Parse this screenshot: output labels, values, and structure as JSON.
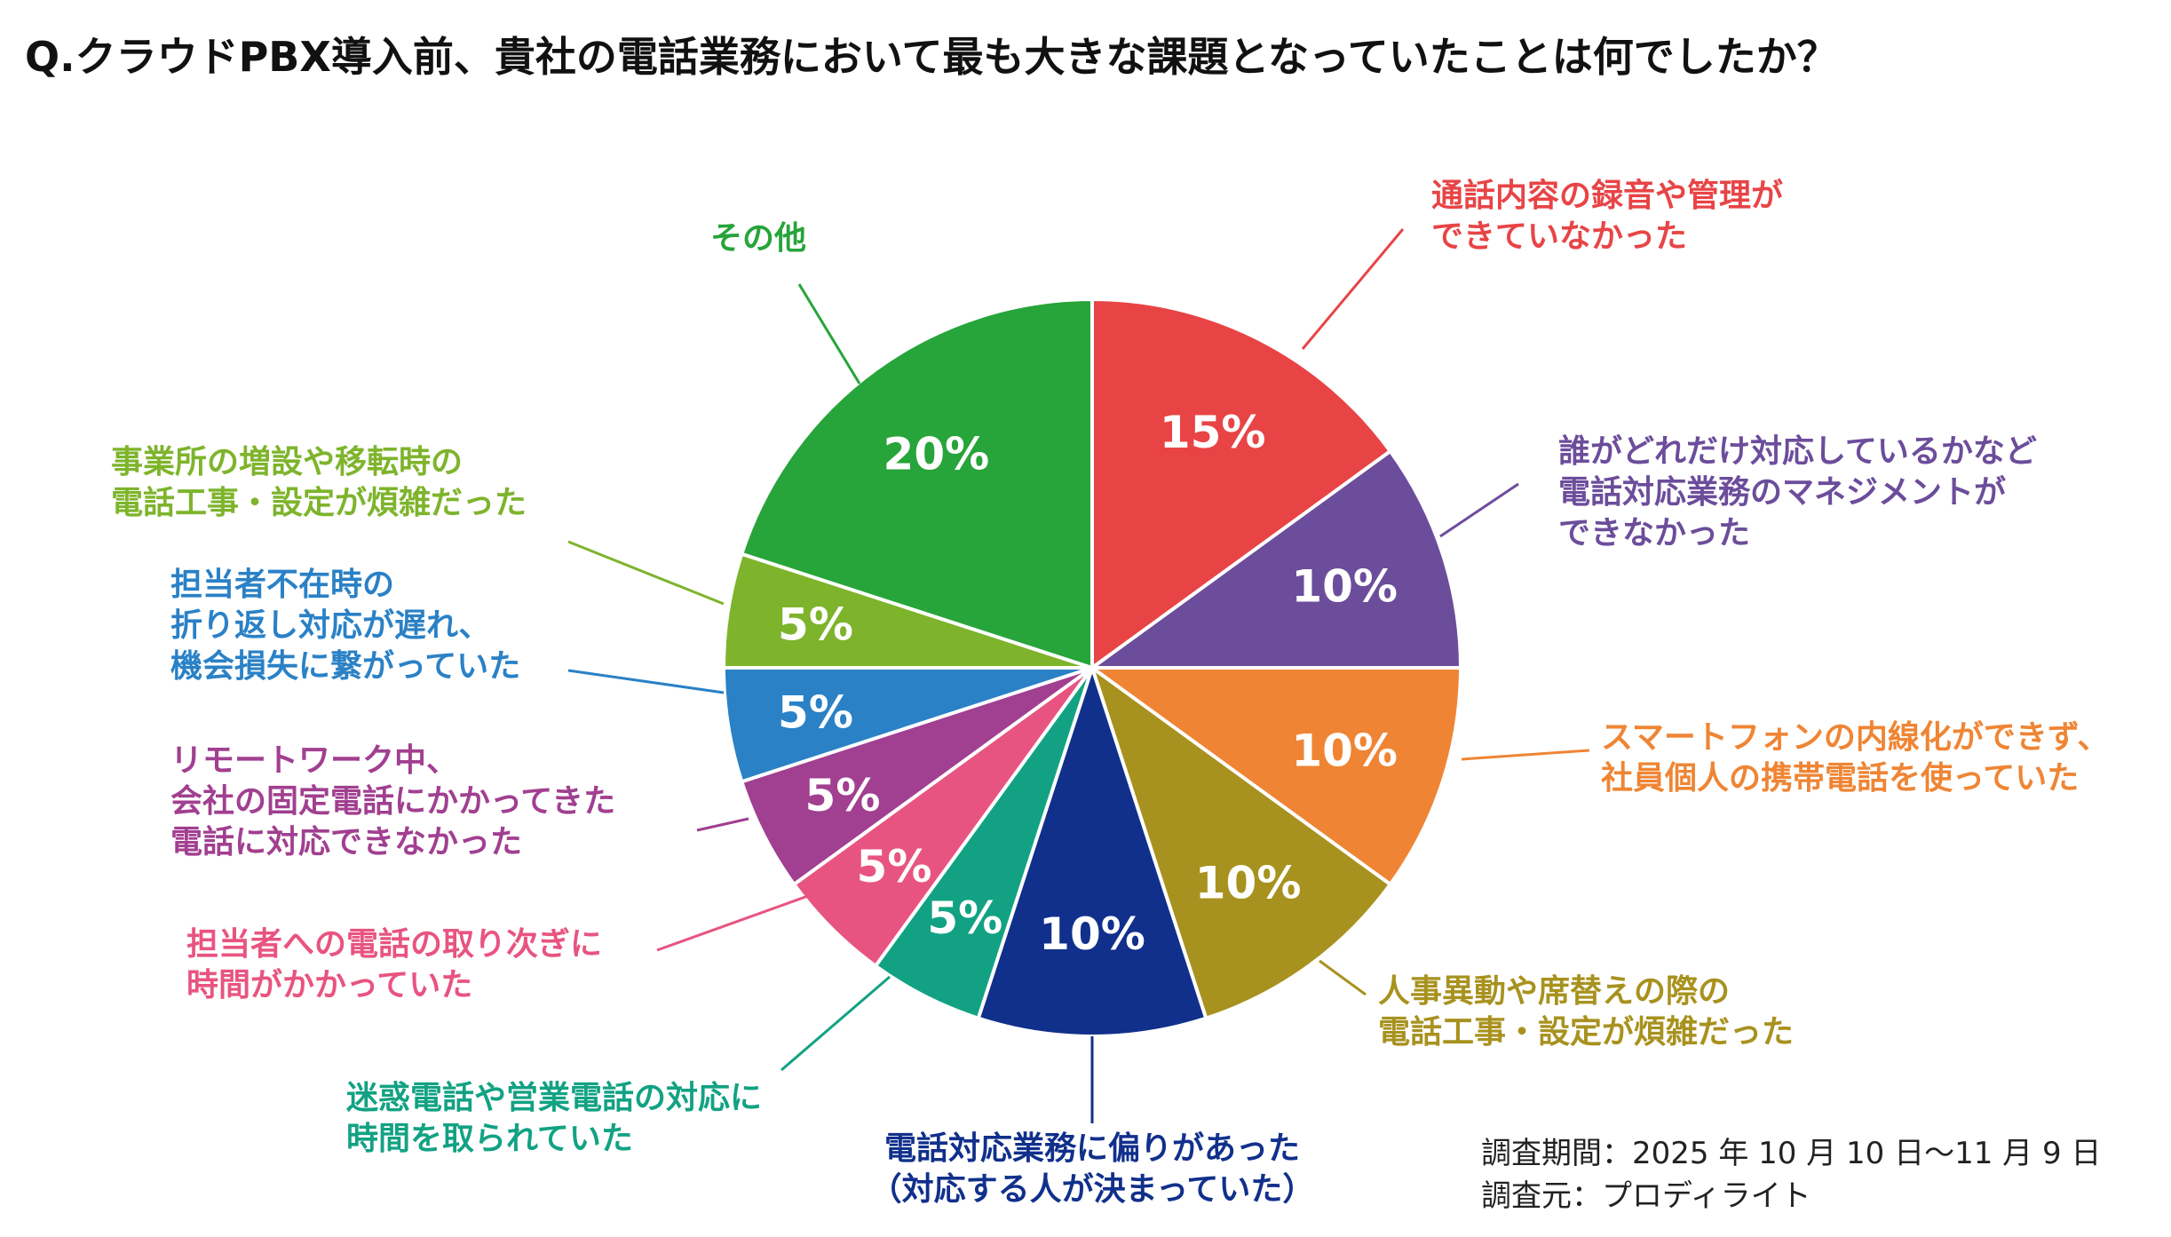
{
  "chart_data": {
    "type": "pie",
    "title": "Q.クラウドPBX導入前、貴社の電話業務において最も大きな課題となっていたことは何でしたか？",
    "unit": "%",
    "slices": [
      {
        "label_lines": [
          "通話内容の録音や管理が",
          "できていなかった"
        ],
        "value": 15,
        "display": "15%",
        "color": "#e84446"
      },
      {
        "label_lines": [
          "誰がどれだけ対応しているかなど",
          "電話対応業務のマネジメントが",
          "できなかった"
        ],
        "value": 10,
        "display": "10%",
        "color": "#6c4d9b"
      },
      {
        "label_lines": [
          "スマートフォンの内線化ができず、",
          "社員個人の携帯電話を使っていた"
        ],
        "value": 10,
        "display": "10%",
        "color": "#ef8534"
      },
      {
        "label_lines": [
          "人事異動や席替えの際の",
          "電話工事・設定が煩雑だった"
        ],
        "value": 10,
        "display": "10%",
        "color": "#a8921f"
      },
      {
        "label_lines": [
          "電話対応業務に偏りがあった",
          "（対応する人が決まっていた）"
        ],
        "value": 10,
        "display": "10%",
        "color": "#11308c"
      },
      {
        "label_lines": [
          "迷惑電話や営業電話の対応に",
          "時間を取られていた"
        ],
        "value": 5,
        "display": "5%",
        "color": "#12a283"
      },
      {
        "label_lines": [
          "担当者への電話の取り次ぎに",
          "時間がかかっていた"
        ],
        "value": 5,
        "display": "5%",
        "color": "#e85481"
      },
      {
        "label_lines": [
          "リモートワーク中、",
          "会社の固定電話にかかってきた",
          "電話に対応できなかった"
        ],
        "value": 5,
        "display": "5%",
        "color": "#a13f90"
      },
      {
        "label_lines": [
          "担当者不在時の",
          "折り返し対応が遅れ、",
          "機会損失に繋がっていた"
        ],
        "value": 5,
        "display": "5%",
        "color": "#2a81c6"
      },
      {
        "label_lines": [
          "事業所の増設や移転時の",
          "電話工事・設定が煩雑だった"
        ],
        "value": 5,
        "display": "5%",
        "color": "#7eb42c"
      },
      {
        "label_lines": [
          "その他"
        ],
        "value": 20,
        "display": "20%",
        "color": "#27a43a"
      }
    ]
  },
  "notes": {
    "period": "調査期間：2025 年 10 月 10 日～11 月 9 日",
    "source": "調査元：プロディライト"
  }
}
